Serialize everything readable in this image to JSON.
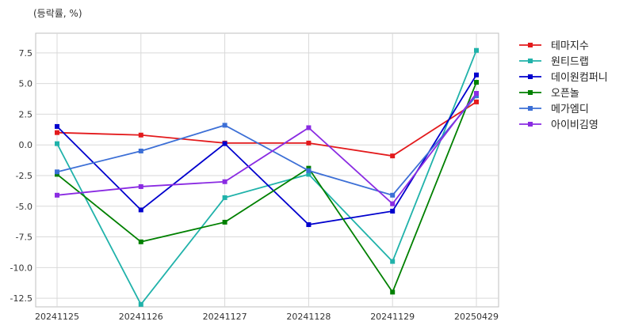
{
  "chart_data": {
    "type": "line",
    "unit_label": "(등락률, %)",
    "categories": [
      "20241125",
      "20241126",
      "20241127",
      "20241128",
      "20241129",
      "20250429"
    ],
    "yticks": [
      "7.5",
      "5.0",
      "2.5",
      "0.0",
      "-2.5",
      "-5.0",
      "-7.5",
      "-10.0",
      "-12.5"
    ],
    "ylim": [
      -13.2,
      9.1
    ],
    "grid": true,
    "legend_position": "right",
    "series": [
      {
        "name": "테마지수",
        "color": "#e31a1c",
        "values": [
          1.0,
          0.8,
          0.15,
          0.15,
          -0.9,
          3.5
        ]
      },
      {
        "name": "원티드랩",
        "color": "#20b2aa",
        "values": [
          0.1,
          -13.0,
          -4.3,
          -2.4,
          -9.5,
          7.7
        ]
      },
      {
        "name": "데이원컴퍼니",
        "color": "#0000cd",
        "values": [
          1.5,
          -5.3,
          0.1,
          -6.5,
          -5.4,
          5.7
        ]
      },
      {
        "name": "오픈놀",
        "color": "#008000",
        "values": [
          -2.4,
          -7.9,
          -6.3,
          -1.9,
          -12.0,
          5.1
        ]
      },
      {
        "name": "메가엠디",
        "color": "#3c6fd6",
        "values": [
          -2.2,
          -0.5,
          1.6,
          -2.1,
          -4.1,
          4.0
        ]
      },
      {
        "name": "아이비김영",
        "color": "#8a2be2",
        "values": [
          -4.1,
          -3.4,
          -3.0,
          1.4,
          -4.8,
          4.2
        ]
      }
    ]
  }
}
